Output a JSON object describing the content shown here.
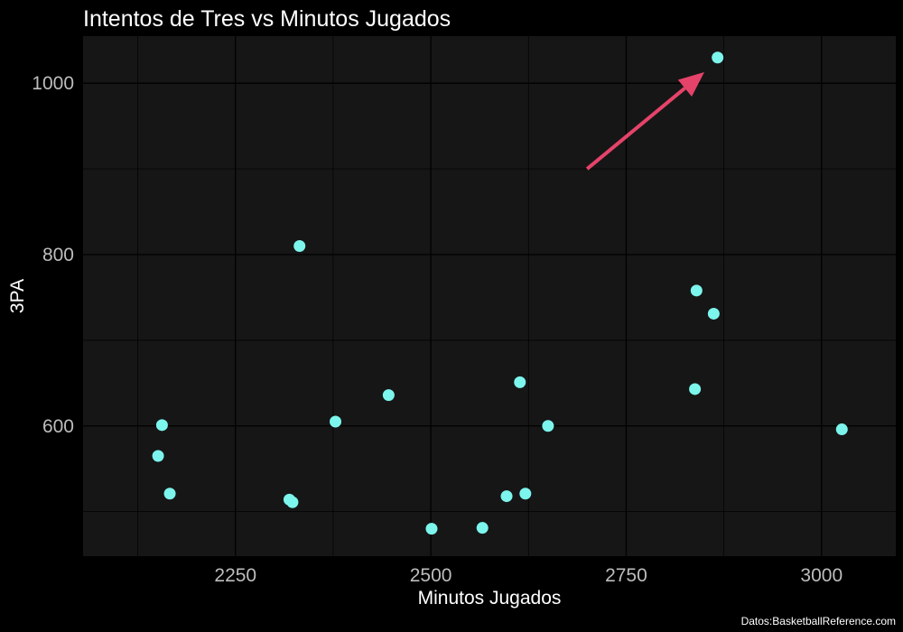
{
  "chart_data": {
    "type": "scatter",
    "title": "Intentos de Tres vs Minutos Jugados",
    "xlabel": "Minutos Jugados",
    "ylabel": "3PA",
    "caption": "Datos:BasketballReference.com",
    "xlim": [
      2055,
      3095
    ],
    "ylim": [
      448,
      1055
    ],
    "x_ticks": [
      2250,
      2500,
      2750,
      3000
    ],
    "y_ticks": [
      600,
      800,
      1000
    ],
    "x_minor_ticks": [
      2125,
      2375,
      2625,
      2875
    ],
    "y_minor_ticks": [
      500,
      700,
      900
    ],
    "grid": true,
    "colors": {
      "background": "#000000",
      "panel": "#161616",
      "grid": "#000000",
      "points": "#7cf5ed",
      "arrow": "#e5436a",
      "title": "#ffffff",
      "tick_labels": "#bdbdbd"
    },
    "points": [
      {
        "x": 2867,
        "y": 1030
      },
      {
        "x": 2332,
        "y": 810
      },
      {
        "x": 2840,
        "y": 758
      },
      {
        "x": 2862,
        "y": 731
      },
      {
        "x": 2614,
        "y": 651
      },
      {
        "x": 2838,
        "y": 643
      },
      {
        "x": 2446,
        "y": 636
      },
      {
        "x": 2378,
        "y": 605
      },
      {
        "x": 2156,
        "y": 601
      },
      {
        "x": 2650,
        "y": 600
      },
      {
        "x": 3026,
        "y": 596
      },
      {
        "x": 2151,
        "y": 565
      },
      {
        "x": 2166,
        "y": 521
      },
      {
        "x": 2621,
        "y": 521
      },
      {
        "x": 2597,
        "y": 518
      },
      {
        "x": 2319,
        "y": 514
      },
      {
        "x": 2323,
        "y": 511
      },
      {
        "x": 2501,
        "y": 480
      },
      {
        "x": 2566,
        "y": 481
      }
    ],
    "annotation": {
      "type": "arrow",
      "from": {
        "x": 2700,
        "y": 900
      },
      "to": {
        "x": 2850,
        "y": 1013
      }
    }
  }
}
